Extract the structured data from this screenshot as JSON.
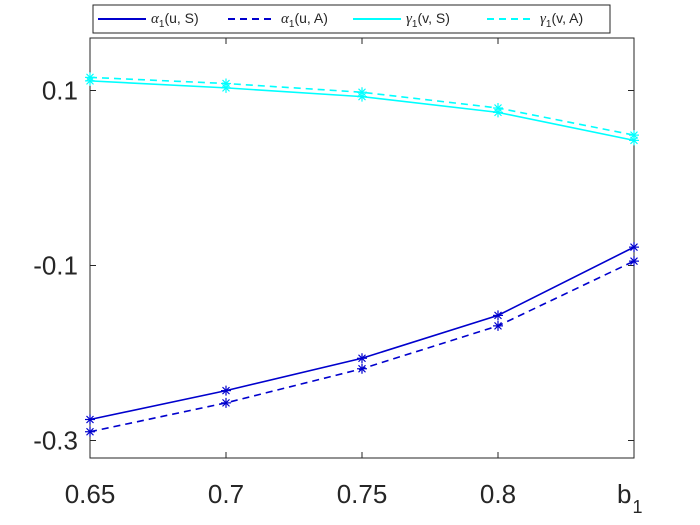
{
  "chart_data": {
    "type": "line",
    "x": [
      0.65,
      0.7,
      0.75,
      0.8,
      0.85
    ],
    "xticklabels": [
      "0.65",
      "0.7",
      "0.75",
      "0.8",
      "b"
    ],
    "xlabel": {
      "main": "b",
      "sub": "1"
    },
    "ylabel": "",
    "xlim": [
      0.65,
      0.85
    ],
    "ylim": [
      -0.32,
      0.16
    ],
    "yticks": [
      0.1,
      -0.1,
      -0.3
    ],
    "yticklabels": [
      "0.1",
      "-0.1",
      "-0.3"
    ],
    "grid": false,
    "legend_position": "top",
    "series": [
      {
        "name": "α1(u, S)",
        "legend": {
          "greek": "α",
          "sub": "1",
          "rest": "(u, S)"
        },
        "color": "#0000CD",
        "dash": "solid",
        "marker": "*",
        "values": [
          -0.276,
          -0.243,
          -0.206,
          -0.157,
          -0.079
        ]
      },
      {
        "name": "α1(u, A)",
        "legend": {
          "greek": "α",
          "sub": "1",
          "rest": "(u, A)"
        },
        "color": "#0000CD",
        "dash": "dashed",
        "marker": "*",
        "values": [
          -0.29,
          -0.257,
          -0.218,
          -0.169,
          -0.095
        ]
      },
      {
        "name": "γ1(v, S)",
        "legend": {
          "greek": "γ",
          "sub": "1",
          "rest": "(v, S)"
        },
        "color": "#00FFFF",
        "dash": "solid",
        "marker": "*",
        "values": [
          0.111,
          0.103,
          0.093,
          0.075,
          0.043
        ]
      },
      {
        "name": "γ1(v, A)",
        "legend": {
          "greek": "γ",
          "sub": "1",
          "rest": "(v, A)"
        },
        "color": "#00FFFF",
        "dash": "dashed",
        "marker": "*",
        "values": [
          0.115,
          0.108,
          0.098,
          0.08,
          0.049
        ]
      }
    ]
  }
}
